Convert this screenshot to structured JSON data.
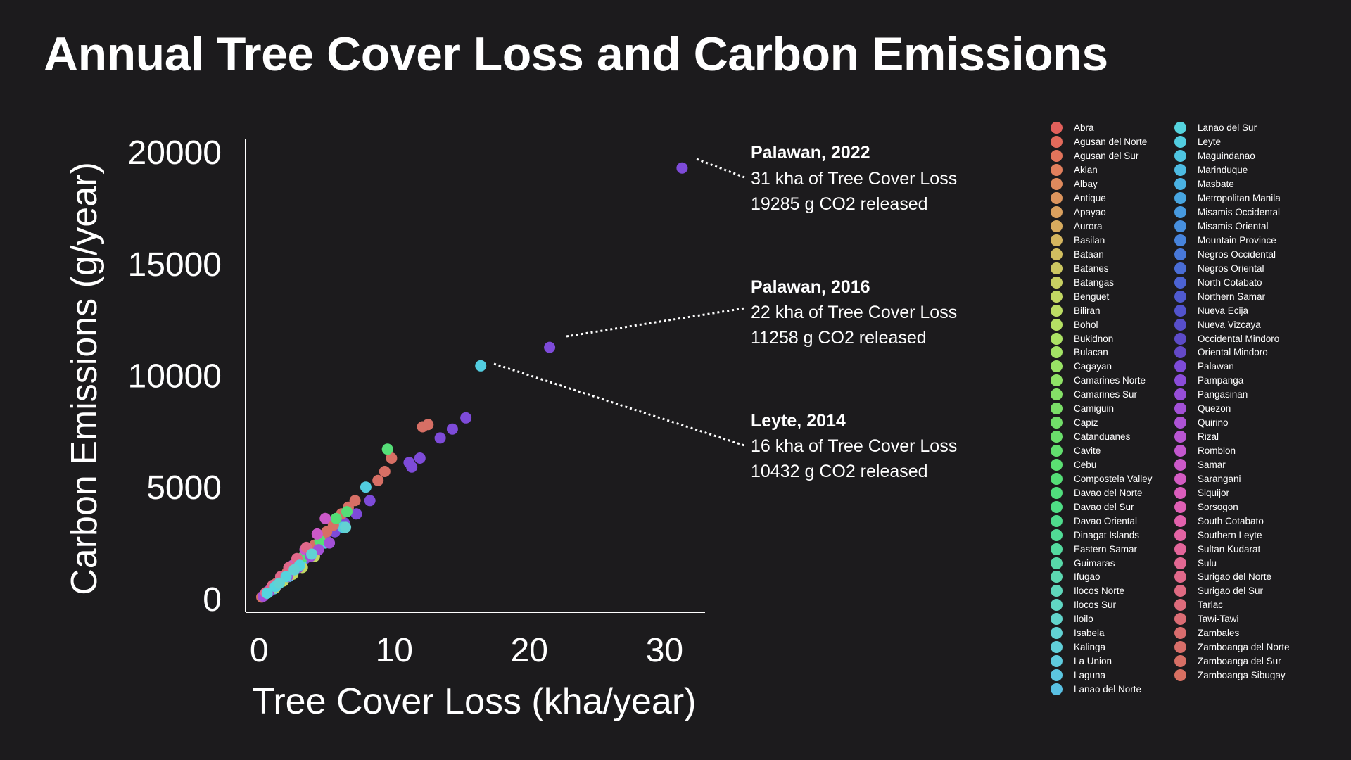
{
  "title": "Annual Tree Cover Loss and Carbon Emissions",
  "chart_data": {
    "type": "scatter",
    "title": "Annual Tree Cover Loss and Carbon Emissions",
    "xlabel": "Tree Cover Loss (kha/year)",
    "ylabel": "Carbon Emissions (g/year)",
    "xlim": [
      -1,
      33
    ],
    "ylim": [
      -600,
      20600
    ],
    "xticks": [
      "0",
      "10",
      "20",
      "30"
    ],
    "yticks": [
      "0",
      "5000",
      "10000",
      "15000",
      "20000"
    ],
    "grid": false,
    "legend_position": "right",
    "point_color_key": "province",
    "provinces": [
      "Abra",
      "Agusan del Norte",
      "Agusan del Sur",
      "Aklan",
      "Albay",
      "Antique",
      "Apayao",
      "Aurora",
      "Basilan",
      "Bataan",
      "Batanes",
      "Batangas",
      "Benguet",
      "Biliran",
      "Bohol",
      "Bukidnon",
      "Bulacan",
      "Cagayan",
      "Camarines Norte",
      "Camarines Sur",
      "Camiguin",
      "Capiz",
      "Catanduanes",
      "Cavite",
      "Cebu",
      "Compostela Valley",
      "Davao del Norte",
      "Davao del Sur",
      "Davao Oriental",
      "Dinagat Islands",
      "Eastern Samar",
      "Guimaras",
      "Ifugao",
      "Ilocos Norte",
      "Ilocos Sur",
      "Iloilo",
      "Isabela",
      "Kalinga",
      "La Union",
      "Laguna",
      "Lanao del Norte",
      "Lanao del Sur",
      "Leyte",
      "Maguindanao",
      "Marinduque",
      "Masbate",
      "Metropolitan Manila",
      "Misamis Occidental",
      "Misamis Oriental",
      "Mountain Province",
      "Negros Occidental",
      "Negros Oriental",
      "North Cotabato",
      "Northern Samar",
      "Nueva Ecija",
      "Nueva Vizcaya",
      "Occidental Mindoro",
      "Oriental Mindoro",
      "Palawan",
      "Pampanga",
      "Pangasinan",
      "Quezon",
      "Quirino",
      "Rizal",
      "Romblon",
      "Samar",
      "Sarangani",
      "Siquijor",
      "Sorsogon",
      "South Cotabato",
      "Southern Leyte",
      "Sultan Kudarat",
      "Sulu",
      "Surigao del Norte",
      "Surigao del Sur",
      "Tarlac",
      "Tawi-Tawi",
      "Zambales",
      "Zamboanga del Norte",
      "Zamboanga del Sur",
      "Zamboanga Sibugay"
    ],
    "colors": [
      "#e2605b",
      "#e26a5b",
      "#e2745b",
      "#e17f5c",
      "#df8a5d",
      "#dd955d",
      "#daa05e",
      "#d7ab5e",
      "#d4b55f",
      "#d1be60",
      "#ccc761",
      "#c8d062",
      "#c2d763",
      "#bcdc64",
      "#b5e064",
      "#ace265",
      "#a3e365",
      "#99e365",
      "#8fe266",
      "#85e067",
      "#7bdf68",
      "#72dd69",
      "#6ade6b",
      "#62de6e",
      "#5bde72",
      "#55de77",
      "#51de7d",
      "#4fdd85",
      "#4fdc8d",
      "#51db96",
      "#54da9f",
      "#58d9a8",
      "#5cd8b1",
      "#5fd7ba",
      "#61d6c3",
      "#62d4cb",
      "#62d2d3",
      "#61cfd9",
      "#5fcbde",
      "#5cc6e1",
      "#59c0e3",
      "#55d4de",
      "#52cde0",
      "#4fc5e1",
      "#4dbbe2",
      "#4ab1e2",
      "#48a6e1",
      "#479ae0",
      "#478fde",
      "#4783dc",
      "#4878d9",
      "#4a6dd6",
      "#4c63d3",
      "#4f5ad0",
      "#5253cd",
      "#574ecb",
      "#5d4bc9",
      "#6449c8",
      "#7e4bd9",
      "#8b4cd9",
      "#974ed8",
      "#a350d7",
      "#ae53d5",
      "#b955d2",
      "#c357ce",
      "#cc59c9",
      "#d45bc3",
      "#da5dbc",
      "#df5fb4",
      "#e261ac",
      "#e363a3",
      "#e3659a",
      "#e26792",
      "#e1688a",
      "#df6a82",
      "#dd6b7b",
      "#db6c74",
      "#d96d6e",
      "#d86e69",
      "#d76f65",
      "#d87062"
    ],
    "series": [
      {
        "name": "Palawan",
        "color": "#7e4bd9",
        "points": [
          [
            31.3,
            19285
          ],
          [
            21.5,
            11258
          ],
          [
            15.3,
            8100
          ],
          [
            14.3,
            7600
          ],
          [
            13.4,
            7200
          ],
          [
            11.9,
            6300
          ],
          [
            11.3,
            5900
          ],
          [
            11.1,
            6100
          ],
          [
            8.2,
            4400
          ],
          [
            7.2,
            3800
          ],
          [
            6.3,
            3400
          ],
          [
            5.6,
            3000
          ],
          [
            5.0,
            2600
          ],
          [
            4.2,
            2200
          ],
          [
            3.4,
            1800
          ],
          [
            2.7,
            1400
          ],
          [
            2.0,
            1000
          ],
          [
            1.3,
            600
          ],
          [
            0.8,
            350
          ]
        ]
      },
      {
        "name": "Leyte",
        "color": "#52cde0",
        "points": [
          [
            16.4,
            10432
          ],
          [
            7.9,
            5000
          ],
          [
            6.2,
            3200
          ],
          [
            4.9,
            2500
          ],
          [
            3.1,
            1600
          ],
          [
            2.2,
            1000
          ],
          [
            1.1,
            450
          ]
        ]
      },
      {
        "name": "Zamboanga del Norte",
        "color": "#d76f65",
        "points": [
          [
            12.5,
            7800
          ],
          [
            12.1,
            7700
          ],
          [
            9.8,
            6300
          ],
          [
            9.3,
            5700
          ],
          [
            8.8,
            5300
          ],
          [
            7.1,
            4400
          ],
          [
            6.6,
            4100
          ],
          [
            6.1,
            3800
          ],
          [
            5.5,
            3300
          ],
          [
            5.0,
            3000
          ],
          [
            4.6,
            2700
          ],
          [
            4.1,
            2400
          ],
          [
            3.6,
            2100
          ],
          [
            3.1,
            1800
          ],
          [
            2.6,
            1500
          ],
          [
            2.1,
            1200
          ],
          [
            1.7,
            950
          ],
          [
            1.3,
            700
          ],
          [
            0.9,
            450
          ],
          [
            0.5,
            250
          ],
          [
            0.2,
            80
          ]
        ]
      },
      {
        "name": "Compostela Valley",
        "color": "#55de77",
        "points": [
          [
            9.5,
            6700
          ],
          [
            6.5,
            3900
          ],
          [
            5.7,
            3600
          ],
          [
            4.5,
            2600
          ],
          [
            3.3,
            1900
          ],
          [
            2.3,
            1200
          ]
        ]
      },
      {
        "name": "Samar",
        "color": "#cc59c9",
        "points": [
          [
            4.9,
            3600
          ],
          [
            4.3,
            2900
          ],
          [
            3.4,
            2200
          ],
          [
            2.5,
            1500
          ],
          [
            1.6,
            900
          ],
          [
            0.8,
            400
          ]
        ]
      },
      {
        "name": "Benguet",
        "color": "#c2d763",
        "points": [
          [
            4.1,
            1900
          ],
          [
            3.2,
            1400
          ],
          [
            2.5,
            1100
          ],
          [
            1.8,
            800
          ],
          [
            1.2,
            500
          ],
          [
            0.6,
            250
          ]
        ]
      },
      {
        "name": "Quezon",
        "color": "#a350d7",
        "points": [
          [
            5.2,
            2500
          ],
          [
            4.4,
            2200
          ],
          [
            3.8,
            1900
          ],
          [
            2.9,
            1400
          ],
          [
            2.1,
            1000
          ],
          [
            1.4,
            650
          ],
          [
            0.7,
            300
          ],
          [
            0.3,
            120
          ]
        ]
      },
      {
        "name": "Sultan Kudarat",
        "color": "#e1688a",
        "points": [
          [
            3.5,
            2300
          ],
          [
            2.8,
            1800
          ],
          [
            2.2,
            1400
          ],
          [
            1.6,
            1000
          ],
          [
            1.0,
            600
          ],
          [
            0.5,
            280
          ]
        ]
      },
      {
        "name": "Lanao del Sur",
        "color": "#55d4de",
        "points": [
          [
            3.0,
            1500
          ],
          [
            2.0,
            1000
          ],
          [
            1.2,
            550
          ],
          [
            0.6,
            250
          ]
        ]
      },
      {
        "name": "Isabela",
        "color": "#62d2d3",
        "points": [
          [
            6.4,
            3200
          ],
          [
            3.9,
            2000
          ],
          [
            2.6,
            1300
          ],
          [
            1.5,
            700
          ]
        ]
      }
    ]
  },
  "annotations": [
    {
      "title": "Palawan, 2022",
      "line1": "31 kha of Tree Cover Loss",
      "line2": "19285 g CO2 released"
    },
    {
      "title": "Palawan, 2016",
      "line1": "22 kha of Tree Cover Loss",
      "line2": "11258 g CO2 released"
    },
    {
      "title": "Leyte, 2014",
      "line1": "16 kha of Tree Cover Loss",
      "line2": "10432 g CO2 released"
    }
  ]
}
